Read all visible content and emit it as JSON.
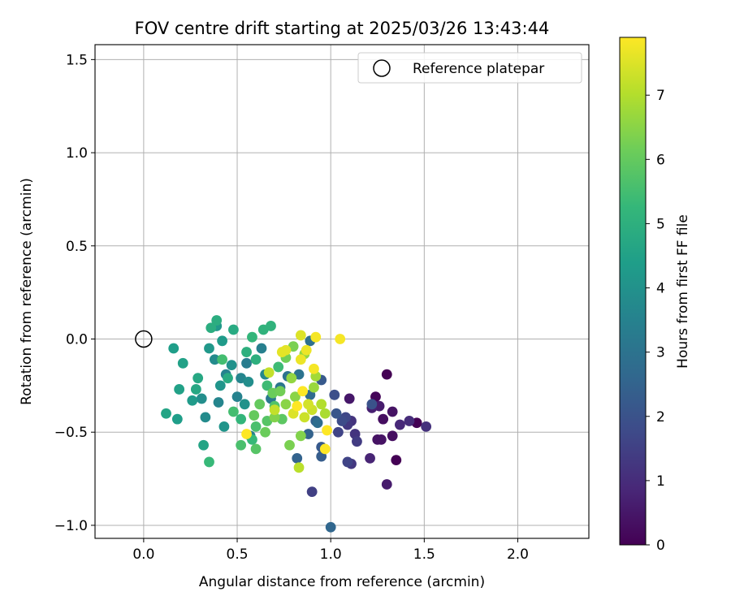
{
  "chart_data": {
    "type": "scatter",
    "title": "FOV centre drift starting at 2025/03/26 13:43:44",
    "xlabel": "Angular distance from reference (arcmin)",
    "ylabel": "Rotation from reference (arcmin)",
    "xlim": [
      -0.26,
      2.38
    ],
    "ylim": [
      -1.07,
      1.58
    ],
    "xticks": [
      0.0,
      0.5,
      1.0,
      1.5,
      2.0
    ],
    "xtick_labels": [
      "0.0",
      "0.5",
      "1.0",
      "1.5",
      "2.0"
    ],
    "yticks": [
      -1.0,
      -0.5,
      0.0,
      0.5,
      1.0,
      1.5
    ],
    "ytick_labels": [
      "−1.0",
      "−0.5",
      "0.0",
      "0.5",
      "1.0",
      "1.5"
    ],
    "grid": true,
    "legend": {
      "position": "top-right",
      "entries": [
        "Reference platepar"
      ]
    },
    "colorbar": {
      "label": "Hours from first FF file",
      "colormap": "viridis",
      "range": [
        0,
        7.9
      ],
      "ticks": [
        0,
        1,
        2,
        3,
        4,
        5,
        6,
        7
      ]
    },
    "reference_point": {
      "x": 0.0,
      "y": 0.0
    },
    "points": [
      {
        "x": 1.3,
        "y": -0.19,
        "t": 0.0
      },
      {
        "x": 1.35,
        "y": -0.65,
        "t": 0.0
      },
      {
        "x": 1.46,
        "y": -0.45,
        "t": 0.0
      },
      {
        "x": 1.24,
        "y": -0.31,
        "t": 0.1
      },
      {
        "x": 1.28,
        "y": -0.43,
        "t": 0.3
      },
      {
        "x": 1.33,
        "y": -0.52,
        "t": 0.3
      },
      {
        "x": 1.25,
        "y": -0.54,
        "t": 0.4
      },
      {
        "x": 1.27,
        "y": -0.54,
        "t": 0.4
      },
      {
        "x": 1.33,
        "y": -0.39,
        "t": 0.4
      },
      {
        "x": 1.1,
        "y": -0.32,
        "t": 0.5
      },
      {
        "x": 1.3,
        "y": -0.78,
        "t": 0.6
      },
      {
        "x": 1.26,
        "y": -0.36,
        "t": 0.6
      },
      {
        "x": 1.22,
        "y": -0.37,
        "t": 0.7
      },
      {
        "x": 1.21,
        "y": -0.64,
        "t": 0.8
      },
      {
        "x": 1.37,
        "y": -0.46,
        "t": 0.9
      },
      {
        "x": 1.42,
        "y": -0.44,
        "t": 1.0
      },
      {
        "x": 1.51,
        "y": -0.47,
        "t": 1.1
      },
      {
        "x": 1.11,
        "y": -0.44,
        "t": 1.2
      },
      {
        "x": 1.13,
        "y": -0.51,
        "t": 1.2
      },
      {
        "x": 1.09,
        "y": -0.46,
        "t": 1.3
      },
      {
        "x": 1.11,
        "y": -0.67,
        "t": 1.3
      },
      {
        "x": 1.14,
        "y": -0.55,
        "t": 1.4
      },
      {
        "x": 0.9,
        "y": -0.82,
        "t": 1.5
      },
      {
        "x": 1.09,
        "y": -0.66,
        "t": 1.6
      },
      {
        "x": 1.04,
        "y": -0.5,
        "t": 1.6
      },
      {
        "x": 1.08,
        "y": -0.42,
        "t": 1.7
      },
      {
        "x": 1.06,
        "y": -0.44,
        "t": 1.8
      },
      {
        "x": 1.02,
        "y": -0.3,
        "t": 1.9
      },
      {
        "x": 1.22,
        "y": -0.35,
        "t": 2.0
      },
      {
        "x": 1.03,
        "y": -0.4,
        "t": 2.1
      },
      {
        "x": 0.95,
        "y": -0.22,
        "t": 2.2
      },
      {
        "x": 0.95,
        "y": -0.58,
        "t": 2.2
      },
      {
        "x": 0.95,
        "y": -0.63,
        "t": 2.3
      },
      {
        "x": 0.92,
        "y": -0.44,
        "t": 2.4
      },
      {
        "x": 0.88,
        "y": -0.51,
        "t": 2.5
      },
      {
        "x": 0.82,
        "y": -0.64,
        "t": 2.5
      },
      {
        "x": 1.0,
        "y": -1.01,
        "t": 2.6
      },
      {
        "x": 0.89,
        "y": -0.3,
        "t": 2.7
      },
      {
        "x": 0.93,
        "y": -0.45,
        "t": 2.8
      },
      {
        "x": 0.89,
        "y": -0.01,
        "t": 2.9
      },
      {
        "x": 0.77,
        "y": -0.2,
        "t": 3.0
      },
      {
        "x": 0.83,
        "y": -0.19,
        "t": 3.0
      },
      {
        "x": 0.73,
        "y": -0.26,
        "t": 3.1
      },
      {
        "x": 0.68,
        "y": -0.32,
        "t": 3.2
      },
      {
        "x": 0.55,
        "y": -0.13,
        "t": 3.3
      },
      {
        "x": 0.63,
        "y": -0.05,
        "t": 3.4
      },
      {
        "x": 0.57,
        "y": -0.52,
        "t": 3.4
      },
      {
        "x": 0.5,
        "y": -0.31,
        "t": 3.5
      },
      {
        "x": 0.44,
        "y": -0.19,
        "t": 3.5
      },
      {
        "x": 0.4,
        "y": -0.34,
        "t": 3.6
      },
      {
        "x": 0.52,
        "y": -0.21,
        "t": 3.6
      },
      {
        "x": 0.65,
        "y": -0.19,
        "t": 3.7
      },
      {
        "x": 0.38,
        "y": -0.11,
        "t": 3.8
      },
      {
        "x": 0.33,
        "y": -0.42,
        "t": 3.8
      },
      {
        "x": 0.31,
        "y": -0.32,
        "t": 3.9
      },
      {
        "x": 0.56,
        "y": -0.23,
        "t": 3.9
      },
      {
        "x": 0.54,
        "y": -0.35,
        "t": 4.0
      },
      {
        "x": 0.47,
        "y": -0.14,
        "t": 4.0
      },
      {
        "x": 0.41,
        "y": -0.25,
        "t": 4.1
      },
      {
        "x": 0.43,
        "y": -0.47,
        "t": 4.1
      },
      {
        "x": 0.35,
        "y": -0.05,
        "t": 4.2
      },
      {
        "x": 0.39,
        "y": 0.07,
        "t": 4.2
      },
      {
        "x": 0.42,
        "y": -0.01,
        "t": 4.3
      },
      {
        "x": 0.26,
        "y": -0.33,
        "t": 4.3
      },
      {
        "x": 0.16,
        "y": -0.05,
        "t": 4.4
      },
      {
        "x": 0.18,
        "y": -0.43,
        "t": 4.4
      },
      {
        "x": 0.21,
        "y": -0.13,
        "t": 4.5
      },
      {
        "x": 0.19,
        "y": -0.27,
        "t": 4.5
      },
      {
        "x": 0.32,
        "y": -0.57,
        "t": 4.6
      },
      {
        "x": 0.12,
        "y": -0.4,
        "t": 4.6
      },
      {
        "x": 0.28,
        "y": -0.27,
        "t": 4.7
      },
      {
        "x": 0.29,
        "y": -0.21,
        "t": 4.7
      },
      {
        "x": 0.45,
        "y": -0.21,
        "t": 4.8
      },
      {
        "x": 0.48,
        "y": 0.05,
        "t": 4.8
      },
      {
        "x": 0.36,
        "y": 0.06,
        "t": 4.9
      },
      {
        "x": 0.39,
        "y": 0.1,
        "t": 4.9
      },
      {
        "x": 0.55,
        "y": -0.07,
        "t": 5.0
      },
      {
        "x": 0.6,
        "y": -0.11,
        "t": 5.0
      },
      {
        "x": 0.64,
        "y": 0.05,
        "t": 5.1
      },
      {
        "x": 0.68,
        "y": 0.07,
        "t": 5.1
      },
      {
        "x": 0.58,
        "y": 0.01,
        "t": 5.2
      },
      {
        "x": 0.52,
        "y": -0.43,
        "t": 5.2
      },
      {
        "x": 0.58,
        "y": -0.54,
        "t": 5.3
      },
      {
        "x": 0.35,
        "y": -0.66,
        "t": 5.3
      },
      {
        "x": 0.72,
        "y": -0.15,
        "t": 5.4
      },
      {
        "x": 0.66,
        "y": -0.25,
        "t": 5.4
      },
      {
        "x": 0.48,
        "y": -0.39,
        "t": 5.5
      },
      {
        "x": 0.42,
        "y": -0.11,
        "t": 5.5
      },
      {
        "x": 0.52,
        "y": -0.57,
        "t": 5.6
      },
      {
        "x": 0.6,
        "y": -0.47,
        "t": 5.6
      },
      {
        "x": 0.7,
        "y": -0.36,
        "t": 5.7
      },
      {
        "x": 0.6,
        "y": -0.59,
        "t": 5.8
      },
      {
        "x": 0.66,
        "y": -0.44,
        "t": 5.8
      },
      {
        "x": 0.74,
        "y": -0.43,
        "t": 5.9
      },
      {
        "x": 0.59,
        "y": -0.41,
        "t": 6.0
      },
      {
        "x": 0.62,
        "y": -0.35,
        "t": 6.0
      },
      {
        "x": 0.65,
        "y": -0.5,
        "t": 6.1
      },
      {
        "x": 0.69,
        "y": -0.29,
        "t": 6.1
      },
      {
        "x": 0.73,
        "y": -0.28,
        "t": 6.2
      },
      {
        "x": 0.76,
        "y": -0.1,
        "t": 6.2
      },
      {
        "x": 0.8,
        "y": -0.04,
        "t": 6.3
      },
      {
        "x": 0.78,
        "y": -0.57,
        "t": 6.3
      },
      {
        "x": 0.7,
        "y": -0.42,
        "t": 6.4
      },
      {
        "x": 0.84,
        "y": -0.52,
        "t": 6.4
      },
      {
        "x": 0.81,
        "y": -0.31,
        "t": 6.5
      },
      {
        "x": 0.76,
        "y": -0.35,
        "t": 6.5
      },
      {
        "x": 0.79,
        "y": -0.21,
        "t": 6.6
      },
      {
        "x": 0.86,
        "y": -0.08,
        "t": 6.6
      },
      {
        "x": 0.91,
        "y": -0.26,
        "t": 6.7
      },
      {
        "x": 0.92,
        "y": -0.2,
        "t": 6.8
      },
      {
        "x": 0.97,
        "y": -0.4,
        "t": 6.9
      },
      {
        "x": 0.95,
        "y": -0.35,
        "t": 7.0
      },
      {
        "x": 0.83,
        "y": -0.69,
        "t": 7.1
      },
      {
        "x": 0.7,
        "y": -0.38,
        "t": 7.2
      },
      {
        "x": 0.67,
        "y": -0.18,
        "t": 7.2
      },
      {
        "x": 0.9,
        "y": -0.38,
        "t": 7.3
      },
      {
        "x": 0.86,
        "y": -0.42,
        "t": 7.3
      },
      {
        "x": 0.88,
        "y": -0.35,
        "t": 7.4
      },
      {
        "x": 0.8,
        "y": -0.4,
        "t": 7.5
      },
      {
        "x": 0.84,
        "y": 0.02,
        "t": 7.5
      },
      {
        "x": 0.74,
        "y": -0.07,
        "t": 7.6
      },
      {
        "x": 0.76,
        "y": -0.06,
        "t": 7.6
      },
      {
        "x": 0.87,
        "y": -0.06,
        "t": 7.7
      },
      {
        "x": 0.84,
        "y": -0.11,
        "t": 7.7
      },
      {
        "x": 0.92,
        "y": 0.01,
        "t": 7.8
      },
      {
        "x": 1.05,
        "y": 0.0,
        "t": 7.8
      },
      {
        "x": 0.91,
        "y": -0.16,
        "t": 7.8
      },
      {
        "x": 0.98,
        "y": -0.49,
        "t": 7.9
      },
      {
        "x": 0.97,
        "y": -0.59,
        "t": 7.9
      },
      {
        "x": 0.55,
        "y": -0.51,
        "t": 7.9
      },
      {
        "x": 0.85,
        "y": -0.28,
        "t": 7.9
      },
      {
        "x": 0.82,
        "y": -0.36,
        "t": 7.9
      }
    ]
  }
}
